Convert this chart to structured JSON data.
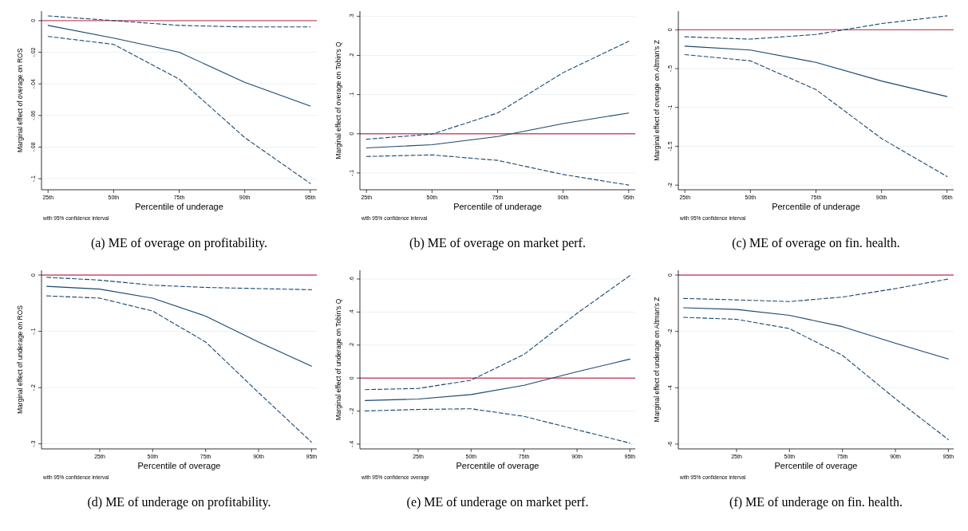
{
  "chart_data": [
    {
      "type": "line",
      "xlabel": "Percentile of underage",
      "ylabel": "Marginal effect of overage on ROS",
      "annotations": [
        "with 95% confidence interval",
        "(a) ME of overage on profitability."
      ],
      "categories": [
        "25th",
        "50th",
        "75th",
        "90th",
        "95th"
      ],
      "series": [
        {
          "color": "#1a476f",
          "line_style": "solid",
          "values": [
            -0.003,
            -0.011,
            -0.02,
            -0.039,
            -0.054
          ]
        },
        {
          "color": "#1a476f",
          "line_style": "dashed",
          "values": [
            0.003,
            0,
            -0.003,
            -0.004,
            -0.004
          ]
        },
        {
          "color": "#1a476f",
          "line_style": "dashed",
          "values": [
            -0.01,
            -0.015,
            -0.037,
            -0.074,
            -0.103
          ]
        }
      ],
      "ylim": [
        -0.107,
        0.006
      ],
      "yticks": [
        {
          "value": -0.1,
          "label": "-.1"
        },
        {
          "value": -0.08,
          "label": "-.08"
        },
        {
          "value": -0.06,
          "label": "-.06"
        },
        {
          "value": -0.04,
          "label": "-.04"
        },
        {
          "value": -0.02,
          "label": "-.02"
        },
        0
      ],
      "grid": "y",
      "ref_lines": [
        {
          "axis": "y",
          "value": 0,
          "color": "#c8506e"
        }
      ]
    },
    {
      "type": "line",
      "xlabel": "Percentile of underage",
      "ylabel": "Marginal effect of overage on Tobin's Q",
      "annotations": [
        "with 95% confidence interval",
        "(b) ME of overage on market perf."
      ],
      "categories": [
        "25th",
        "50th",
        "75th",
        "90th",
        "95th"
      ],
      "series": [
        {
          "color": "#1a476f",
          "line_style": "solid",
          "values": [
            -0.036,
            -0.028,
            -0.007,
            0.026,
            0.053
          ]
        },
        {
          "color": "#1a476f",
          "line_style": "dashed",
          "values": [
            -0.014,
            -0.001,
            0.053,
            0.156,
            0.236
          ]
        },
        {
          "color": "#1a476f",
          "line_style": "dashed",
          "values": [
            -0.058,
            -0.054,
            -0.068,
            -0.104,
            -0.131
          ]
        }
      ],
      "ylim": [
        -0.143,
        0.313
      ],
      "yticks": [
        {
          "value": -0.1,
          "label": "-.1"
        },
        0,
        {
          "value": 0.1,
          "label": ".1"
        },
        {
          "value": 0.2,
          "label": ".2"
        },
        {
          "value": 0.3,
          "label": ".3"
        }
      ],
      "grid": "y",
      "ref_lines": [
        {
          "axis": "y",
          "value": 0,
          "color": "#c8506e"
        }
      ]
    },
    {
      "type": "line",
      "xlabel": "Percentile of underage",
      "ylabel": "Marginal effect of overage on Altman's Z",
      "annotations": [
        "with 95% confidence interval",
        "(c) ME of overage on fin. health."
      ],
      "categories": [
        "25th",
        "50th",
        "75th",
        "90th",
        "95th"
      ],
      "series": [
        {
          "color": "#1a476f",
          "line_style": "solid",
          "values": [
            -0.21,
            -0.26,
            -0.42,
            -0.66,
            -0.86
          ]
        },
        {
          "color": "#1a476f",
          "line_style": "dashed",
          "values": [
            -0.09,
            -0.12,
            -0.06,
            0.08,
            0.18
          ]
        },
        {
          "color": "#1a476f",
          "line_style": "dashed",
          "values": [
            -0.32,
            -0.4,
            -0.77,
            -1.4,
            -1.89
          ]
        }
      ],
      "ylim": [
        -2.06,
        0.24
      ],
      "yticks": [
        -2,
        -1.5,
        -1,
        {
          "value": -0.5,
          "label": "-.5"
        },
        0
      ],
      "grid": "y",
      "ref_lines": [
        {
          "axis": "y",
          "value": 0,
          "color": "#c8506e"
        }
      ]
    },
    {
      "type": "line",
      "xlabel": "Percentile of overage",
      "ylabel": "Marginal effect of underage on ROS",
      "annotations": [
        "with 95% confidence interval",
        "(d) ME of underage on profitability."
      ],
      "categories": [
        null,
        "25th",
        "50th",
        "75th",
        "90th",
        "95th"
      ],
      "series": [
        {
          "color": "#1a476f",
          "line_style": "solid",
          "values": [
            -0.02,
            -0.025,
            -0.041,
            -0.073,
            -0.119,
            -0.162
          ]
        },
        {
          "color": "#1a476f",
          "line_style": "dashed",
          "values": [
            -0.004,
            -0.009,
            -0.018,
            -0.022,
            -0.024,
            -0.026
          ]
        },
        {
          "color": "#1a476f",
          "line_style": "dashed",
          "values": [
            -0.037,
            -0.041,
            -0.064,
            -0.119,
            -0.209,
            -0.297
          ]
        }
      ],
      "ylim": [
        -0.309,
        0.0085
      ],
      "yticks": [
        {
          "value": -0.3,
          "label": "-.3"
        },
        {
          "value": -0.2,
          "label": "-.2"
        },
        {
          "value": -0.1,
          "label": "-.1"
        },
        0
      ],
      "grid": "y",
      "ref_lines": [
        {
          "axis": "y",
          "value": 0,
          "color": "#c8506e"
        }
      ]
    },
    {
      "type": "line",
      "xlabel": "Percentile of overage",
      "ylabel": "Marginal effect of underage on Tobin's Q",
      "annotations": [
        "with 95% confidence overage",
        "(e) ME of underage on market perf."
      ],
      "categories": [
        null,
        "25th",
        "50th",
        "75th",
        "90th",
        "95th"
      ],
      "series": [
        {
          "color": "#1a476f",
          "line_style": "solid",
          "values": [
            -0.136,
            -0.127,
            -0.1,
            -0.044,
            0.038,
            0.115
          ]
        },
        {
          "color": "#1a476f",
          "line_style": "dashed",
          "values": [
            -0.07,
            -0.063,
            -0.013,
            0.143,
            0.392,
            0.621
          ]
        },
        {
          "color": "#1a476f",
          "line_style": "dashed",
          "values": [
            -0.199,
            -0.19,
            -0.186,
            -0.232,
            -0.313,
            -0.394
          ]
        }
      ],
      "ylim": [
        -0.429,
        0.653
      ],
      "yticks": [
        {
          "value": -0.4,
          "label": "-.4"
        },
        {
          "value": -0.2,
          "label": "-.2"
        },
        0,
        {
          "value": 0.2,
          "label": ".2"
        },
        {
          "value": 0.4,
          "label": ".4"
        },
        {
          "value": 0.6,
          "label": ".6"
        }
      ],
      "grid": "y",
      "ref_lines": [
        {
          "axis": "y",
          "value": 0,
          "color": "#c8506e"
        }
      ]
    },
    {
      "type": "line",
      "xlabel": "Percentile of overage",
      "ylabel": "Marginal effect of underage on Altman's Z",
      "annotations": [
        "with 95% confidence interval",
        "(f) ME of underage on fin. health."
      ],
      "categories": [
        null,
        "25th",
        "50th",
        "75th",
        "90th",
        "95th"
      ],
      "series": [
        {
          "color": "#1a476f",
          "line_style": "solid",
          "values": [
            -1.16,
            -1.22,
            -1.43,
            -1.83,
            -2.42,
            -2.98
          ]
        },
        {
          "color": "#1a476f",
          "line_style": "dashed",
          "values": [
            -0.83,
            -0.88,
            -0.94,
            -0.78,
            -0.48,
            -0.14
          ]
        },
        {
          "color": "#1a476f",
          "line_style": "dashed",
          "values": [
            -1.5,
            -1.57,
            -1.9,
            -2.85,
            -4.39,
            -5.84
          ]
        }
      ],
      "ylim": [
        -6.17,
        0.17
      ],
      "yticks": [
        -6,
        -4,
        -2,
        0
      ],
      "grid": "y",
      "ref_lines": [
        {
          "axis": "y",
          "value": 0,
          "color": "#c8506e"
        }
      ]
    }
  ]
}
